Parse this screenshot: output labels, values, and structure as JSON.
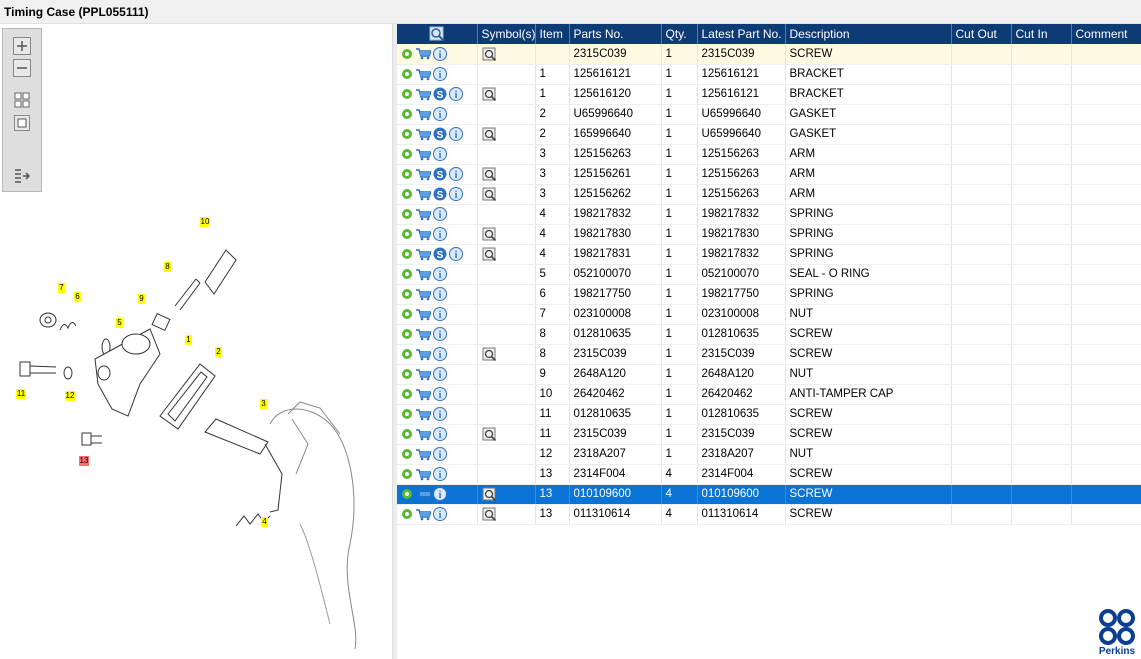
{
  "window": {
    "title": "Timing Case (PPL055111)"
  },
  "colors": {
    "header_bg": "#0d3b75",
    "selected_row": "#0a74d6",
    "highlight_row": "#fffbe2",
    "callout_yellow": "#ffff00",
    "callout_red": "#ff6f6f"
  },
  "toolbar": {
    "tools": [
      {
        "name": "zoom-in-icon"
      },
      {
        "name": "zoom-out-icon"
      },
      {
        "name": "fit-all-icon"
      },
      {
        "name": "actual-size-icon"
      },
      {
        "name": "export-list-icon"
      }
    ]
  },
  "diagram": {
    "callouts": [
      {
        "label": "10",
        "color": "yellow"
      },
      {
        "label": "8",
        "color": "yellow"
      },
      {
        "label": "7",
        "color": "yellow"
      },
      {
        "label": "6",
        "color": "yellow"
      },
      {
        "label": "9",
        "color": "yellow"
      },
      {
        "label": "5",
        "color": "yellow"
      },
      {
        "label": "1",
        "color": "yellow"
      },
      {
        "label": "2",
        "color": "yellow"
      },
      {
        "label": "11",
        "color": "yellow"
      },
      {
        "label": "12",
        "color": "yellow"
      },
      {
        "label": "3",
        "color": "yellow"
      },
      {
        "label": "13",
        "color": "red"
      },
      {
        "label": "4",
        "color": "yellow"
      }
    ]
  },
  "table": {
    "columns": [
      "",
      "Symbol(s)",
      "Item",
      "Parts No.",
      "Qty.",
      "Latest Part No.",
      "Description",
      "Cut Out",
      "Cut In",
      "Comment"
    ],
    "rows": [
      {
        "s": false,
        "sym": true,
        "item": "",
        "part": "2315C039",
        "qty": "1",
        "latest": "2315C039",
        "desc": "SCREW"
      },
      {
        "s": false,
        "sym": false,
        "item": "1",
        "part": "125616121",
        "qty": "1",
        "latest": "125616121",
        "desc": "BRACKET"
      },
      {
        "s": true,
        "sym": true,
        "item": "1",
        "part": "125616120",
        "qty": "1",
        "latest": "125616121",
        "desc": "BRACKET"
      },
      {
        "s": false,
        "sym": false,
        "item": "2",
        "part": "U65996640",
        "qty": "1",
        "latest": "U65996640",
        "desc": "GASKET"
      },
      {
        "s": true,
        "sym": true,
        "item": "2",
        "part": "165996640",
        "qty": "1",
        "latest": "U65996640",
        "desc": "GASKET"
      },
      {
        "s": false,
        "sym": false,
        "item": "3",
        "part": "125156263",
        "qty": "1",
        "latest": "125156263",
        "desc": "ARM"
      },
      {
        "s": true,
        "sym": true,
        "item": "3",
        "part": "125156261",
        "qty": "1",
        "latest": "125156263",
        "desc": "ARM"
      },
      {
        "s": true,
        "sym": true,
        "item": "3",
        "part": "125156262",
        "qty": "1",
        "latest": "125156263",
        "desc": "ARM"
      },
      {
        "s": false,
        "sym": false,
        "item": "4",
        "part": "198217832",
        "qty": "1",
        "latest": "198217832",
        "desc": "SPRING"
      },
      {
        "s": false,
        "sym": true,
        "item": "4",
        "part": "198217830",
        "qty": "1",
        "latest": "198217830",
        "desc": "SPRING"
      },
      {
        "s": true,
        "sym": true,
        "item": "4",
        "part": "198217831",
        "qty": "1",
        "latest": "198217832",
        "desc": "SPRING"
      },
      {
        "s": false,
        "sym": false,
        "item": "5",
        "part": "052100070",
        "qty": "1",
        "latest": "052100070",
        "desc": "SEAL - O RING"
      },
      {
        "s": false,
        "sym": false,
        "item": "6",
        "part": "198217750",
        "qty": "1",
        "latest": "198217750",
        "desc": "SPRING"
      },
      {
        "s": false,
        "sym": false,
        "item": "7",
        "part": "023100008",
        "qty": "1",
        "latest": "023100008",
        "desc": "NUT"
      },
      {
        "s": false,
        "sym": false,
        "item": "8",
        "part": "012810635",
        "qty": "1",
        "latest": "012810635",
        "desc": "SCREW"
      },
      {
        "s": false,
        "sym": true,
        "item": "8",
        "part": "2315C039",
        "qty": "1",
        "latest": "2315C039",
        "desc": "SCREW"
      },
      {
        "s": false,
        "sym": false,
        "item": "9",
        "part": "2648A120",
        "qty": "1",
        "latest": "2648A120",
        "desc": "NUT"
      },
      {
        "s": false,
        "sym": false,
        "item": "10",
        "part": "26420462",
        "qty": "1",
        "latest": "26420462",
        "desc": "ANTI-TAMPER CAP"
      },
      {
        "s": false,
        "sym": false,
        "item": "11",
        "part": "012810635",
        "qty": "1",
        "latest": "012810635",
        "desc": "SCREW"
      },
      {
        "s": false,
        "sym": true,
        "item": "11",
        "part": "2315C039",
        "qty": "1",
        "latest": "2315C039",
        "desc": "SCREW"
      },
      {
        "s": false,
        "sym": false,
        "item": "12",
        "part": "2318A207",
        "qty": "1",
        "latest": "2318A207",
        "desc": "NUT"
      },
      {
        "s": false,
        "sym": false,
        "item": "13",
        "part": "2314F004",
        "qty": "4",
        "latest": "2314F004",
        "desc": "SCREW"
      },
      {
        "s": false,
        "sym": true,
        "item": "13",
        "part": "010109600",
        "qty": "4",
        "latest": "010109600",
        "desc": "SCREW",
        "selected": true
      },
      {
        "s": false,
        "sym": true,
        "item": "13",
        "part": "011310614",
        "qty": "4",
        "latest": "011310614",
        "desc": "SCREW"
      }
    ]
  },
  "brand": {
    "name": "Perkins"
  }
}
